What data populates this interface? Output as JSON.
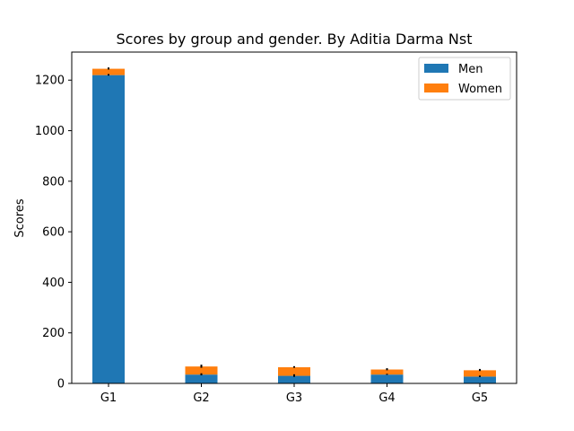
{
  "chart_data": {
    "type": "bar",
    "stacked": true,
    "title": "Scores by group and gender. By Aditia Darma Nst",
    "xlabel": "",
    "ylabel": "Scores",
    "categories": [
      "G1",
      "G2",
      "G3",
      "G4",
      "G5"
    ],
    "series": [
      {
        "name": "Men",
        "values": [
          1220,
          35,
          30,
          35,
          27
        ],
        "errors": [
          2,
          3,
          4,
          1,
          2
        ],
        "color": "#1f77b4"
      },
      {
        "name": "Women",
        "values": [
          25,
          32,
          34,
          20,
          25
        ],
        "errors": [
          3,
          5,
          2,
          3,
          3
        ],
        "color": "#ff7f0e"
      }
    ],
    "ylim": [
      0,
      1311
    ],
    "yticks": [
      0,
      200,
      400,
      600,
      800,
      1000,
      1200
    ],
    "legend": "top-right",
    "grid": false
  }
}
